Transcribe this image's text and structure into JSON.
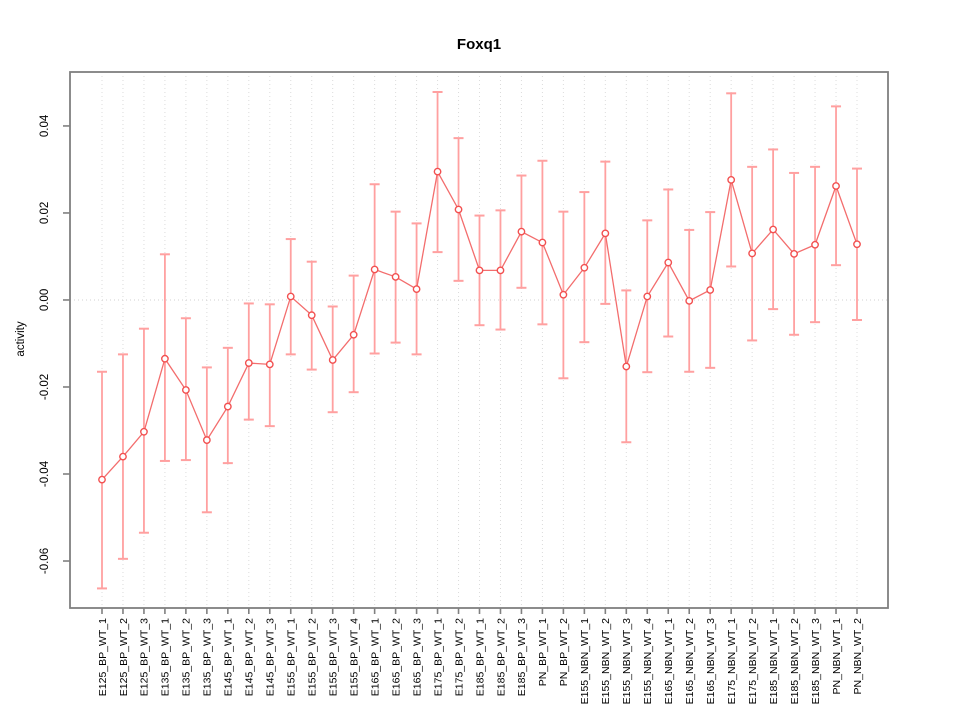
{
  "chart_data": {
    "type": "line",
    "title": "Foxq1",
    "xlabel": "",
    "ylabel": "activity",
    "legend": "none",
    "grid": "vertical dotted gridlines at every category plus dotted zero line",
    "point_style": "open-circle with symmetric error bars",
    "ylim": [
      -0.0708,
      0.0524
    ],
    "yticks": [
      0.04,
      0.02,
      0.0,
      -0.02,
      -0.04,
      -0.06
    ],
    "ytick_labels": [
      "0.04",
      "0.02",
      "0.00",
      "-0.02",
      "-0.04",
      "-0.06"
    ],
    "categories": [
      "E125_BP_WT_1",
      "E125_BP_WT_2",
      "E125_BP_WT_3",
      "E135_BP_WT_1",
      "E135_BP_WT_2",
      "E135_BP_WT_3",
      "E145_BP_WT_1",
      "E145_BP_WT_2",
      "E145_BP_WT_3",
      "E155_BP_WT_1",
      "E155_BP_WT_2",
      "E155_BP_WT_3",
      "E155_BP_WT_4",
      "E165_BP_WT_1",
      "E165_BP_WT_2",
      "E165_BP_WT_3",
      "E175_BP_WT_1",
      "E175_BP_WT_2",
      "E185_BP_WT_1",
      "E185_BP_WT_2",
      "E185_BP_WT_3",
      "PN_BP_WT_1",
      "PN_BP_WT_2",
      "E155_NBN_WT_1",
      "E155_NBN_WT_2",
      "E155_NBN_WT_3",
      "E155_NBN_WT_4",
      "E165_NBN_WT_1",
      "E165_NBN_WT_2",
      "E165_NBN_WT_3",
      "E175_NBN_WT_1",
      "E175_NBN_WT_2",
      "E185_NBN_WT_1",
      "E185_NBN_WT_2",
      "E185_NBN_WT_3",
      "PN_NBN_WT_1",
      "PN_NBN_WT_2"
    ],
    "series": [
      {
        "name": "activity",
        "values": [
          -0.0413,
          -0.036,
          -0.0303,
          -0.0135,
          -0.0207,
          -0.0322,
          -0.0245,
          -0.0145,
          -0.0148,
          0.0008,
          -0.0035,
          -0.0138,
          -0.008,
          0.007,
          0.0053,
          0.0025,
          0.0295,
          0.0208,
          0.0068,
          0.0068,
          0.0157,
          0.0132,
          0.0012,
          0.0074,
          0.0153,
          -0.0153,
          0.0008,
          0.0086,
          -0.0002,
          0.0023,
          0.0276,
          0.0107,
          0.0162,
          0.0106,
          0.0127,
          0.0262,
          0.0128
        ],
        "lower": [
          -0.0663,
          -0.0595,
          -0.0535,
          -0.037,
          -0.0368,
          -0.0488,
          -0.0375,
          -0.0275,
          -0.029,
          -0.0125,
          -0.016,
          -0.0258,
          -0.0212,
          -0.0123,
          -0.0098,
          -0.0125,
          0.011,
          0.0044,
          -0.0058,
          -0.0068,
          0.0028,
          -0.0056,
          -0.018,
          -0.0097,
          -0.0009,
          -0.0327,
          -0.0166,
          -0.0084,
          -0.0165,
          -0.0156,
          0.0077,
          -0.0093,
          -0.0021,
          -0.008,
          -0.0051,
          0.008,
          -0.0046
        ],
        "upper": [
          -0.0165,
          -0.0125,
          -0.0066,
          0.0105,
          -0.0042,
          -0.0155,
          -0.011,
          -0.0008,
          -0.001,
          0.014,
          0.0088,
          -0.0015,
          0.0056,
          0.0266,
          0.0203,
          0.0176,
          0.0478,
          0.0372,
          0.0194,
          0.0206,
          0.0286,
          0.032,
          0.0203,
          0.0248,
          0.0318,
          0.0022,
          0.0183,
          0.0254,
          0.0161,
          0.0202,
          0.0475,
          0.0306,
          0.0346,
          0.0292,
          0.0306,
          0.0445,
          0.0302
        ]
      }
    ],
    "colors": {
      "series_line": "#f36d6d",
      "point_stroke": "#f25050",
      "point_fill": "#ffffff",
      "error_bar": "#ffa0a0",
      "grid": "#dcdcdc",
      "zero_line": "#d0d0d0",
      "axis": "#808080",
      "text": "#000000",
      "background": "#ffffff"
    }
  }
}
